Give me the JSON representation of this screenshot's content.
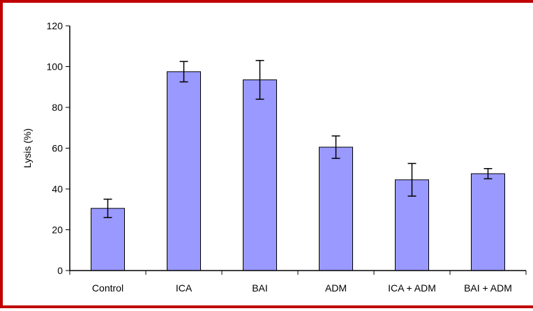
{
  "chart_data": {
    "type": "bar",
    "title": "",
    "xlabel": "",
    "ylabel": "Lysis (%)",
    "ylim": [
      0,
      120
    ],
    "yticks": [
      0,
      20,
      40,
      60,
      80,
      100,
      120
    ],
    "grid": false,
    "categories": [
      "Control",
      "ICA",
      "BAI",
      "ADM",
      "ICA + ADM",
      "BAI + ADM"
    ],
    "values": [
      30.5,
      97.5,
      93.5,
      60.5,
      44.5,
      47.5
    ],
    "errors": [
      4.5,
      5.0,
      9.5,
      5.5,
      8.0,
      2.5
    ],
    "bar_color": "#9999ff",
    "frame_color": "#c00000"
  }
}
